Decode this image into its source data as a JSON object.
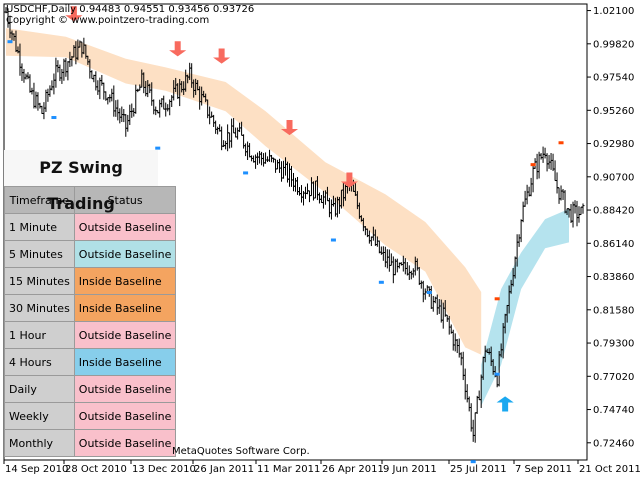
{
  "header": {
    "symbol_line": "USDCHF,Daily  0.94483 0.94551 0.93456 0.93726",
    "copyright_line": "Copyright © www.pointzero-trading.com"
  },
  "panel": {
    "title": "PZ Swing Trading",
    "columns": [
      "Timeframe",
      "Status"
    ],
    "rows": [
      {
        "timeframe": "1 Minute",
        "status": "Outside Baseline",
        "color": "#f9c0cb"
      },
      {
        "timeframe": "5 Minutes",
        "status": "Outside Baseline",
        "color": "#b0e0e6"
      },
      {
        "timeframe": "15 Minutes",
        "status": "Inside Baseline",
        "color": "#f4a460"
      },
      {
        "timeframe": "30 Minutes",
        "status": "Inside Baseline",
        "color": "#f4a460"
      },
      {
        "timeframe": "1 Hour",
        "status": "Outside Baseline",
        "color": "#f9c0cb"
      },
      {
        "timeframe": "4 Hours",
        "status": "Inside Baseline",
        "color": "#87ceeb"
      },
      {
        "timeframe": "Daily",
        "status": "Outside Baseline",
        "color": "#f9c0cb"
      },
      {
        "timeframe": "Weekly",
        "status": "Outside Baseline",
        "color": "#f9c0cb"
      },
      {
        "timeframe": "Monthly",
        "status": "Outside Baseline",
        "color": "#f9c0cb"
      }
    ]
  },
  "footer": {
    "vendor": "MetaQuotes Software Corp."
  },
  "chart_data": {
    "type": "candlestick",
    "x_ticks": [
      "14 Sep 2010",
      "28 Oct 2010",
      "13 Dec 2010",
      "26 Jan 2011",
      "11 Mar 2011",
      "26 Apr 2011",
      "9 Jun 2011",
      "25 Jul 2011",
      "7 Sep 2011",
      "21 Oct 2011"
    ],
    "y_ticks": [
      "1.02100",
      "0.99820",
      "0.97540",
      "0.95260",
      "0.92980",
      "0.90700",
      "0.88420",
      "0.86140",
      "0.83860",
      "0.81580",
      "0.79300",
      "0.77020",
      "0.74740",
      "0.72460"
    ],
    "ylim": [
      0.7128,
      1.0255
    ],
    "price_path": [
      [
        0,
        1.02
      ],
      [
        6,
        0.992
      ],
      [
        12,
        0.965
      ],
      [
        18,
        0.951
      ],
      [
        24,
        0.976
      ],
      [
        30,
        0.985
      ],
      [
        38,
        0.997
      ],
      [
        44,
        0.975
      ],
      [
        52,
        0.962
      ],
      [
        60,
        0.941
      ],
      [
        68,
        0.972
      ],
      [
        76,
        0.953
      ],
      [
        84,
        0.963
      ],
      [
        92,
        0.976
      ],
      [
        100,
        0.955
      ],
      [
        108,
        0.934
      ],
      [
        116,
        0.937
      ],
      [
        124,
        0.922
      ],
      [
        132,
        0.918
      ],
      [
        140,
        0.91
      ],
      [
        148,
        0.899
      ],
      [
        156,
        0.898
      ],
      [
        164,
        0.883
      ],
      [
        172,
        0.902
      ],
      [
        180,
        0.873
      ],
      [
        188,
        0.853
      ],
      [
        196,
        0.842
      ],
      [
        204,
        0.847
      ],
      [
        212,
        0.824
      ],
      [
        220,
        0.81
      ],
      [
        228,
        0.782
      ],
      [
        234,
        0.73
      ],
      [
        240,
        0.79
      ],
      [
        246,
        0.77
      ],
      [
        252,
        0.826
      ],
      [
        258,
        0.88
      ],
      [
        264,
        0.91
      ],
      [
        270,
        0.926
      ],
      [
        276,
        0.9
      ],
      [
        282,
        0.882
      ]
    ],
    "resistance_band": [
      [
        0,
        1.009,
        0.99
      ],
      [
        30,
        1.003,
        0.989
      ],
      [
        60,
        0.988,
        0.971
      ],
      [
        80,
        0.982,
        0.966
      ],
      [
        110,
        0.972,
        0.952
      ],
      [
        130,
        0.952,
        0.928
      ],
      [
        160,
        0.917,
        0.896
      ],
      [
        190,
        0.895,
        0.86
      ],
      [
        210,
        0.876,
        0.842
      ],
      [
        230,
        0.845,
        0.79
      ],
      [
        238,
        0.828,
        0.785
      ]
    ],
    "support_band": [
      [
        238,
        0.778,
        0.75
      ],
      [
        248,
        0.83,
        0.778
      ],
      [
        258,
        0.855,
        0.83
      ],
      [
        270,
        0.878,
        0.858
      ],
      [
        282,
        0.885,
        0.862
      ]
    ],
    "sell_arrows": [
      [
        34,
        1.014
      ],
      [
        86,
        0.99
      ],
      [
        108,
        0.985
      ],
      [
        142,
        0.936
      ],
      [
        172,
        0.9
      ]
    ],
    "buy_arrows": [
      [
        250,
        0.756
      ]
    ],
    "swing_lows": [
      [
        2,
        1.0
      ],
      [
        24,
        0.948
      ],
      [
        76,
        0.927
      ],
      [
        120,
        0.91
      ],
      [
        164,
        0.864
      ],
      [
        188,
        0.835
      ],
      [
        212,
        0.828
      ],
      [
        234,
        0.712
      ],
      [
        246,
        0.772
      ]
    ],
    "swing_highs": [
      [
        246,
        0.823
      ],
      [
        264,
        0.915
      ],
      [
        278,
        0.93
      ]
    ]
  }
}
